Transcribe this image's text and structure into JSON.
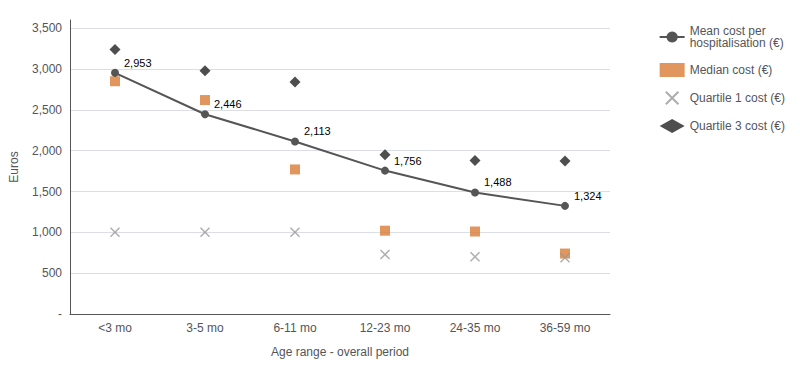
{
  "chart_data": {
    "type": "scatter",
    "xlabel": "Age range - overall period",
    "ylabel": "Euros",
    "categories": [
      "<3 mo",
      "3-5 mo",
      "6-11 mo",
      "12-23 mo",
      "24-35 mo",
      "36-59 mo"
    ],
    "series": [
      {
        "name": "Mean cost per\nhospitalisation (€)",
        "type": "line",
        "marker": "circle",
        "color": "#555555",
        "values": [
          2953,
          2446,
          2113,
          1756,
          1488,
          1324
        ],
        "data_labels": true,
        "value_labels": [
          "2,953",
          "2,446",
          "2,113",
          "1,756",
          "1,488",
          "1,324"
        ]
      },
      {
        "name": "Median cost (€)",
        "type": "scatter",
        "marker": "square",
        "color": "#D97C35",
        "values": [
          2850,
          2620,
          1770,
          1020,
          1010,
          740
        ]
      },
      {
        "name": "Quartile 1 cost (€)",
        "type": "scatter",
        "marker": "x",
        "color": "#999999",
        "values": [
          1000,
          1000,
          1000,
          730,
          700,
          690
        ]
      },
      {
        "name": "Quartile 3 cost (€)",
        "type": "scatter",
        "marker": "diamond",
        "color": "#222222",
        "values": [
          3240,
          2980,
          2840,
          1950,
          1880,
          1875
        ]
      }
    ],
    "ylim": [
      0,
      3600
    ],
    "yticks": [
      {
        "value": 0,
        "label": "-"
      },
      500,
      {
        "value": 1000,
        "label": "1,000"
      },
      {
        "value": 1500,
        "label": "1,500"
      },
      {
        "value": 2000,
        "label": "2,000"
      },
      {
        "value": 2500,
        "label": "2,500"
      },
      {
        "value": 3000,
        "label": "3,000"
      },
      {
        "value": 3500,
        "label": "3,500"
      }
    ],
    "grid": true,
    "legend": "right"
  }
}
